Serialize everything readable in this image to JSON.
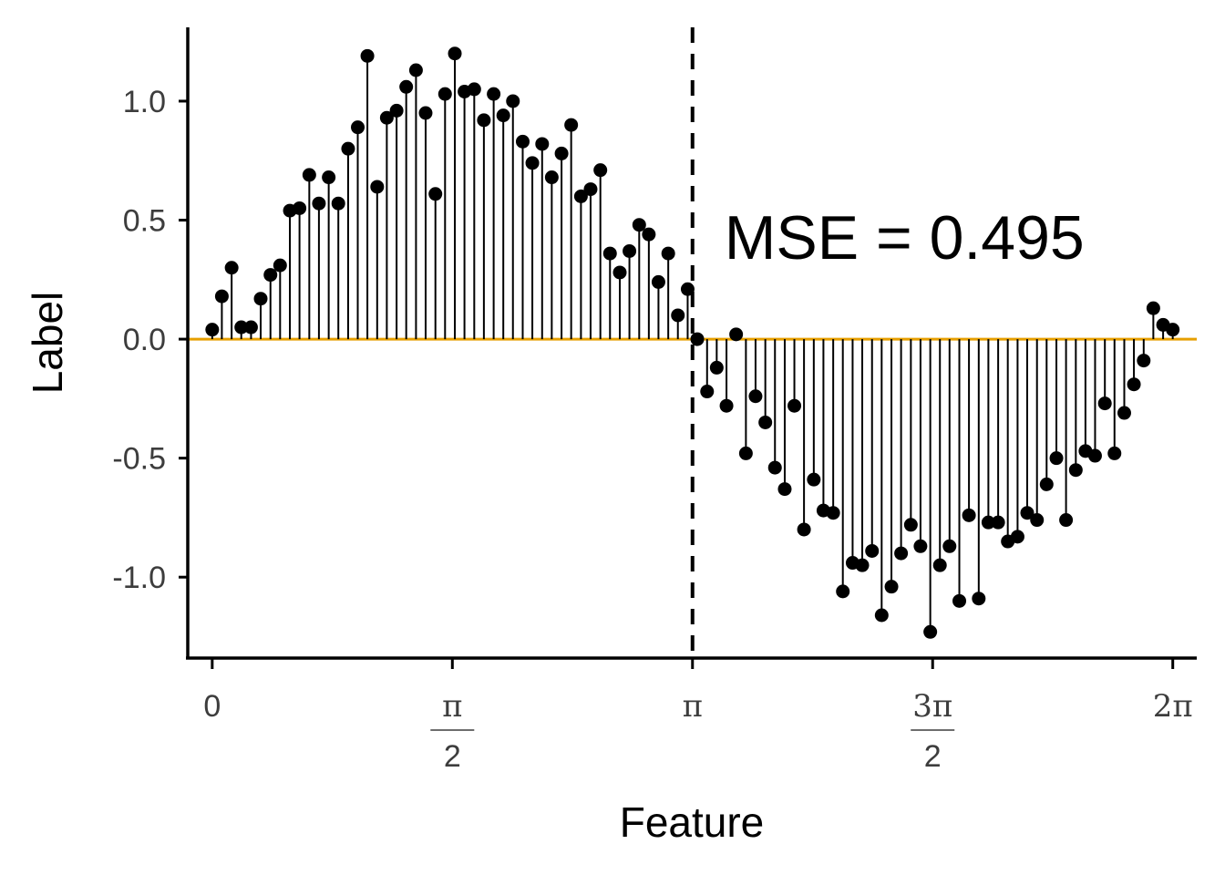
{
  "chart_data": {
    "type": "scatter",
    "style": "lollipop",
    "xlabel": "Feature",
    "ylabel": "Label",
    "xlim": [
      -0.16,
      6.44
    ],
    "ylim": [
      -1.34,
      1.31
    ],
    "grid": false,
    "x_ticks": [
      {
        "value": 0,
        "num": "0",
        "den": ""
      },
      {
        "value": 1.5708,
        "num": "π",
        "den": "2"
      },
      {
        "value": 3.1416,
        "num": "π",
        "den": ""
      },
      {
        "value": 4.7124,
        "num": "3π",
        "den": "2"
      },
      {
        "value": 6.2832,
        "num": "2π",
        "den": ""
      }
    ],
    "y_ticks": [
      {
        "value": 1.0,
        "label": "1.0"
      },
      {
        "value": 0.5,
        "label": "0.5"
      },
      {
        "value": 0.0,
        "label": "0.0"
      },
      {
        "value": -0.5,
        "label": "-0.5"
      },
      {
        "value": -1.0,
        "label": "-1.0"
      }
    ],
    "baseline": {
      "y": 0.0,
      "color": "#E69F00"
    },
    "vline": {
      "x": 3.1416,
      "style": "dashed"
    },
    "annotation": {
      "text": "MSE = 0.495",
      "x": 3.35,
      "y": 0.43
    },
    "colors": {
      "points": "#000000",
      "baseline": "#E69F00"
    },
    "x": [
      0.0,
      0.063,
      0.127,
      0.19,
      0.254,
      0.317,
      0.381,
      0.444,
      0.508,
      0.571,
      0.635,
      0.698,
      0.762,
      0.825,
      0.889,
      0.952,
      1.015,
      1.079,
      1.142,
      1.206,
      1.269,
      1.333,
      1.396,
      1.46,
      1.523,
      1.587,
      1.65,
      1.714,
      1.777,
      1.841,
      1.904,
      1.967,
      2.031,
      2.094,
      2.158,
      2.221,
      2.285,
      2.348,
      2.412,
      2.475,
      2.539,
      2.602,
      2.666,
      2.729,
      2.793,
      2.856,
      2.919,
      2.983,
      3.046,
      3.11,
      3.173,
      3.237,
      3.3,
      3.364,
      3.427,
      3.491,
      3.554,
      3.618,
      3.681,
      3.745,
      3.808,
      3.871,
      3.935,
      3.998,
      4.062,
      4.125,
      4.189,
      4.252,
      4.316,
      4.379,
      4.443,
      4.506,
      4.57,
      4.633,
      4.697,
      4.76,
      4.823,
      4.887,
      4.95,
      5.014,
      5.077,
      5.141,
      5.204,
      5.268,
      5.331,
      5.395,
      5.458,
      5.522,
      5.585,
      5.649,
      5.712,
      5.775,
      5.839,
      5.902,
      5.966,
      6.029,
      6.093,
      6.156,
      6.22,
      6.283
    ],
    "y": [
      0.04,
      0.18,
      0.3,
      0.05,
      0.05,
      0.17,
      0.27,
      0.31,
      0.54,
      0.55,
      0.69,
      0.57,
      0.68,
      0.57,
      0.8,
      0.89,
      1.19,
      0.64,
      0.93,
      0.96,
      1.06,
      1.13,
      0.95,
      0.61,
      1.03,
      1.2,
      1.04,
      1.05,
      0.92,
      1.03,
      0.94,
      1.0,
      0.83,
      0.74,
      0.82,
      0.68,
      0.78,
      0.9,
      0.6,
      0.63,
      0.71,
      0.36,
      0.28,
      0.37,
      0.48,
      0.44,
      0.24,
      0.36,
      0.1,
      0.21,
      0.0,
      -0.22,
      -0.12,
      -0.28,
      0.02,
      -0.48,
      -0.24,
      -0.35,
      -0.54,
      -0.63,
      -0.28,
      -0.8,
      -0.59,
      -0.72,
      -0.73,
      -1.06,
      -0.94,
      -0.95,
      -0.89,
      -1.16,
      -1.04,
      -0.9,
      -0.78,
      -0.87,
      -1.23,
      -0.95,
      -0.87,
      -1.1,
      -0.74,
      -1.09,
      -0.77,
      -0.77,
      -0.85,
      -0.83,
      -0.73,
      -0.76,
      -0.61,
      -0.5,
      -0.76,
      -0.55,
      -0.47,
      -0.49,
      -0.27,
      -0.48,
      -0.31,
      -0.19,
      -0.09,
      0.13,
      0.06,
      0.04
    ]
  }
}
